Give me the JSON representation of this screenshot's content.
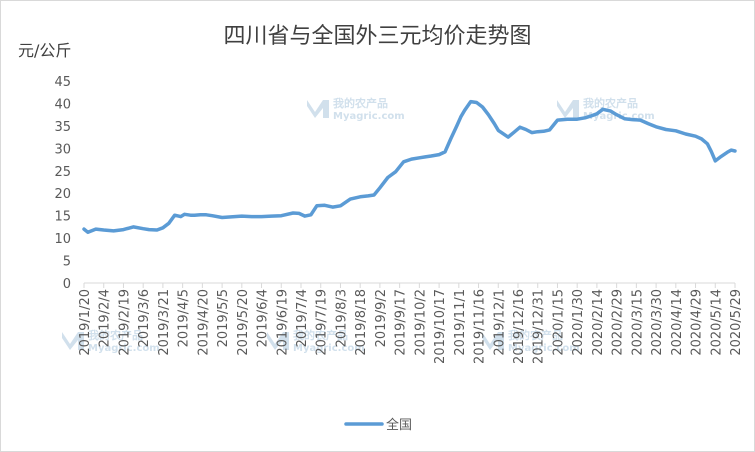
{
  "chart_data": {
    "type": "line",
    "title": "四川省与全国外三元均价走势图",
    "ylabel": "元/公斤",
    "xlabel": "",
    "ylim": [
      0,
      45
    ],
    "yticks": [
      0,
      5,
      10,
      15,
      20,
      25,
      30,
      35,
      40,
      45
    ],
    "grid": false,
    "legend_position": "bottom",
    "line_color": "#5b9bd5",
    "categories": [
      "2019/1/20",
      "2019/2/4",
      "2019/2/19",
      "2019/3/6",
      "2019/3/21",
      "2019/4/5",
      "2019/4/20",
      "2019/5/5",
      "2019/5/20",
      "2019/6/4",
      "2019/6/19",
      "2019/7/4",
      "2019/7/19",
      "2019/8/3",
      "2019/8/18",
      "2019/9/2",
      "2019/9/17",
      "2019/10/2",
      "2019/10/17",
      "2019/11/1",
      "2019/11/16",
      "2019/12/1",
      "2019/12/16",
      "2019/12/31",
      "2020/1/15",
      "2020/1/30",
      "2020/2/14",
      "2020/2/29",
      "2020/3/15",
      "2020/3/30",
      "2020/4/14",
      "2020/4/29",
      "2020/5/14",
      "2020/5/29"
    ],
    "series": [
      {
        "name": "全国",
        "x": [
          0,
          0.2,
          0.6,
          1,
          1.5,
          2,
          2.5,
          3,
          3.3,
          3.7,
          4,
          4.3,
          4.6,
          4.9,
          5.1,
          5.4,
          5.6,
          5.9,
          6.2,
          6.5,
          7,
          8,
          8.5,
          9,
          9.5,
          10,
          10.6,
          10.9,
          11.2,
          11.5,
          11.8,
          12.2,
          12.6,
          13,
          13.5,
          14,
          14.4,
          14.7,
          15,
          15.4,
          15.8,
          16.2,
          16.6,
          17,
          17.3,
          17.6,
          18,
          18.3,
          18.6,
          18.9,
          19.1,
          19.3,
          19.6,
          19.9,
          20.2,
          20.5,
          20.8,
          21,
          21.2,
          21.5,
          21.8,
          22.1,
          22.4,
          22.7,
          23,
          23.3,
          23.6,
          24,
          24.5,
          25,
          25.4,
          25.7,
          26,
          26.3,
          26.7,
          27,
          27.4,
          27.8,
          28.2,
          28.6,
          29,
          29.5,
          30,
          30.5,
          31,
          31.3,
          31.6,
          31.8,
          32,
          32.3,
          32.6,
          32.8,
          33
        ],
        "values": [
          12,
          11.3,
          12,
          11.8,
          11.6,
          11.9,
          12.5,
          12.1,
          11.9,
          11.8,
          12.3,
          13.3,
          15.1,
          14.8,
          15.3,
          15.1,
          15.1,
          15.2,
          15.2,
          15,
          14.6,
          14.9,
          14.8,
          14.8,
          14.9,
          15,
          15.6,
          15.5,
          14.9,
          15.2,
          17.2,
          17.3,
          16.9,
          17.2,
          18.7,
          19.2,
          19.4,
          19.6,
          21.2,
          23.5,
          24.8,
          27,
          27.6,
          27.9,
          28.1,
          28.3,
          28.6,
          29.2,
          32.2,
          35,
          37,
          38.5,
          40.4,
          40.2,
          39.2,
          37.5,
          35.5,
          34,
          33.4,
          32.5,
          33.6,
          34.7,
          34.2,
          33.5,
          33.7,
          33.8,
          34.1,
          36.3,
          36.5,
          36.5,
          36.8,
          37.2,
          37.7,
          38.7,
          38.3,
          37.5,
          36.6,
          36.4,
          36.3,
          35.5,
          34.8,
          34.2,
          33.9,
          33.2,
          32.7,
          32.1,
          31,
          29.3,
          27.2,
          28.2,
          29.1,
          29.6,
          29.4
        ]
      }
    ]
  },
  "watermark": {
    "brand_cn": "我的农产品",
    "brand_en": "Myagric.com"
  }
}
